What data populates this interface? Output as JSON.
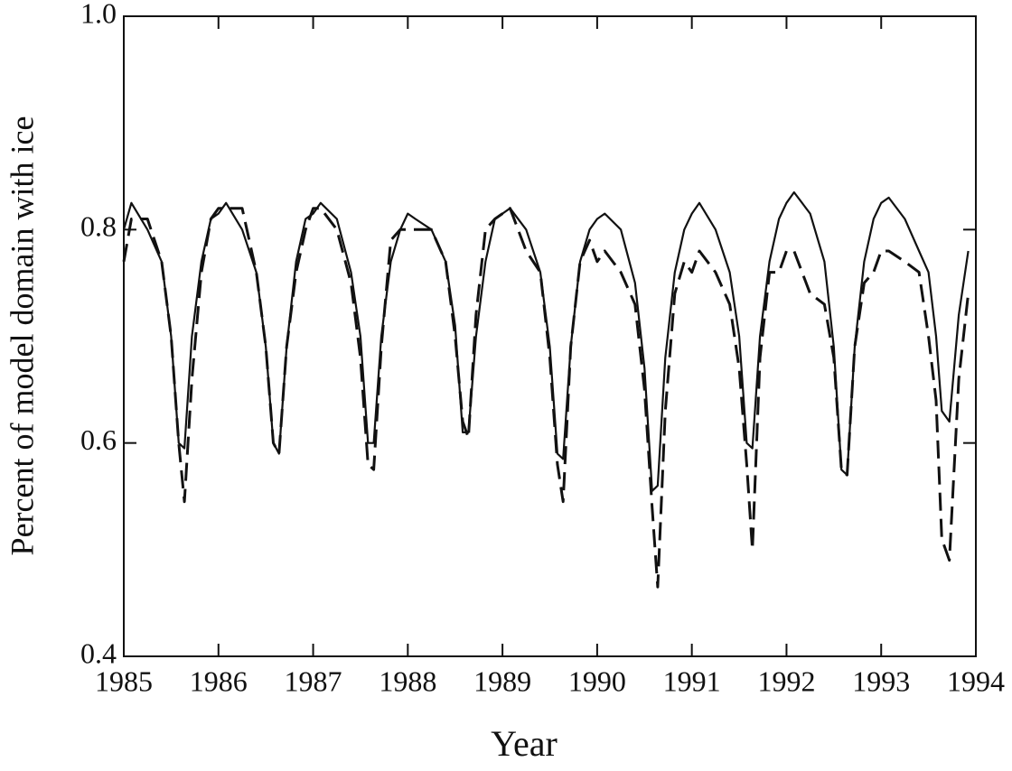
{
  "chart_data": {
    "type": "line",
    "xlabel": "Year",
    "ylabel": "Percent of model domain with ice",
    "x": [
      1985,
      1985.08,
      1985.25,
      1985.4,
      1985.5,
      1985.58,
      1985.64,
      1985.72,
      1985.82,
      1985.92,
      1986,
      1986.08,
      1986.25,
      1986.4,
      1986.5,
      1986.58,
      1986.64,
      1986.72,
      1986.82,
      1986.92,
      1987,
      1987.08,
      1987.25,
      1987.4,
      1987.5,
      1987.58,
      1987.64,
      1987.72,
      1987.82,
      1987.92,
      1988,
      1988.08,
      1988.25,
      1988.4,
      1988.5,
      1988.58,
      1988.64,
      1988.72,
      1988.82,
      1988.92,
      1989,
      1989.08,
      1989.25,
      1989.4,
      1989.5,
      1989.58,
      1989.64,
      1989.72,
      1989.82,
      1989.92,
      1990,
      1990.08,
      1990.25,
      1990.4,
      1990.5,
      1990.58,
      1990.64,
      1990.72,
      1990.82,
      1990.92,
      1991,
      1991.08,
      1991.25,
      1991.4,
      1991.5,
      1991.58,
      1991.64,
      1991.72,
      1991.82,
      1991.92,
      1992,
      1992.08,
      1992.25,
      1992.4,
      1992.5,
      1992.58,
      1992.64,
      1992.72,
      1992.82,
      1992.92,
      1993,
      1993.08,
      1993.25,
      1993.4,
      1993.5,
      1993.58,
      1993.64,
      1993.72,
      1993.82,
      1993.92
    ],
    "series": [
      {
        "color": "#111",
        "dash": "solid",
        "values": [
          0.8,
          0.825,
          0.8,
          0.77,
          0.7,
          0.6,
          0.595,
          0.7,
          0.77,
          0.81,
          0.815,
          0.825,
          0.8,
          0.76,
          0.69,
          0.6,
          0.59,
          0.69,
          0.77,
          0.81,
          0.815,
          0.825,
          0.81,
          0.76,
          0.7,
          0.6,
          0.6,
          0.7,
          0.77,
          0.8,
          0.815,
          0.81,
          0.8,
          0.77,
          0.71,
          0.61,
          0.61,
          0.7,
          0.77,
          0.81,
          0.815,
          0.82,
          0.8,
          0.76,
          0.69,
          0.59,
          0.585,
          0.69,
          0.77,
          0.8,
          0.81,
          0.815,
          0.8,
          0.75,
          0.67,
          0.555,
          0.56,
          0.68,
          0.76,
          0.8,
          0.815,
          0.825,
          0.8,
          0.76,
          0.7,
          0.6,
          0.595,
          0.7,
          0.77,
          0.81,
          0.825,
          0.835,
          0.815,
          0.77,
          0.69,
          0.575,
          0.57,
          0.69,
          0.77,
          0.81,
          0.825,
          0.83,
          0.81,
          0.78,
          0.76,
          0.7,
          0.63,
          0.62,
          0.72,
          0.78
        ]
      },
      {
        "color": "#111",
        "dash": "dashed",
        "values": [
          0.77,
          0.81,
          0.81,
          0.77,
          0.7,
          0.6,
          0.545,
          0.66,
          0.76,
          0.81,
          0.82,
          0.82,
          0.82,
          0.76,
          0.69,
          0.6,
          0.59,
          0.69,
          0.76,
          0.8,
          0.82,
          0.82,
          0.8,
          0.75,
          0.68,
          0.58,
          0.575,
          0.69,
          0.79,
          0.8,
          0.8,
          0.8,
          0.8,
          0.77,
          0.7,
          0.62,
          0.605,
          0.72,
          0.8,
          0.81,
          0.815,
          0.82,
          0.78,
          0.76,
          0.68,
          0.58,
          0.545,
          0.69,
          0.77,
          0.79,
          0.77,
          0.78,
          0.76,
          0.73,
          0.65,
          0.54,
          0.465,
          0.63,
          0.74,
          0.77,
          0.76,
          0.78,
          0.76,
          0.73,
          0.67,
          0.58,
          0.5,
          0.68,
          0.76,
          0.76,
          0.78,
          0.78,
          0.74,
          0.73,
          0.68,
          0.575,
          0.57,
          0.69,
          0.75,
          0.76,
          0.78,
          0.78,
          0.77,
          0.76,
          0.7,
          0.64,
          0.51,
          0.49,
          0.66,
          0.74
        ]
      }
    ],
    "xlim": [
      1985,
      1994
    ],
    "xticks": [
      1985,
      1986,
      1987,
      1988,
      1989,
      1990,
      1991,
      1992,
      1993,
      1994
    ],
    "ylim": [
      0.4,
      1
    ],
    "yticks": [
      0.4,
      0.6,
      0.8,
      {
        "value": 1,
        "label": "1.0"
      }
    ],
    "grid": false
  }
}
